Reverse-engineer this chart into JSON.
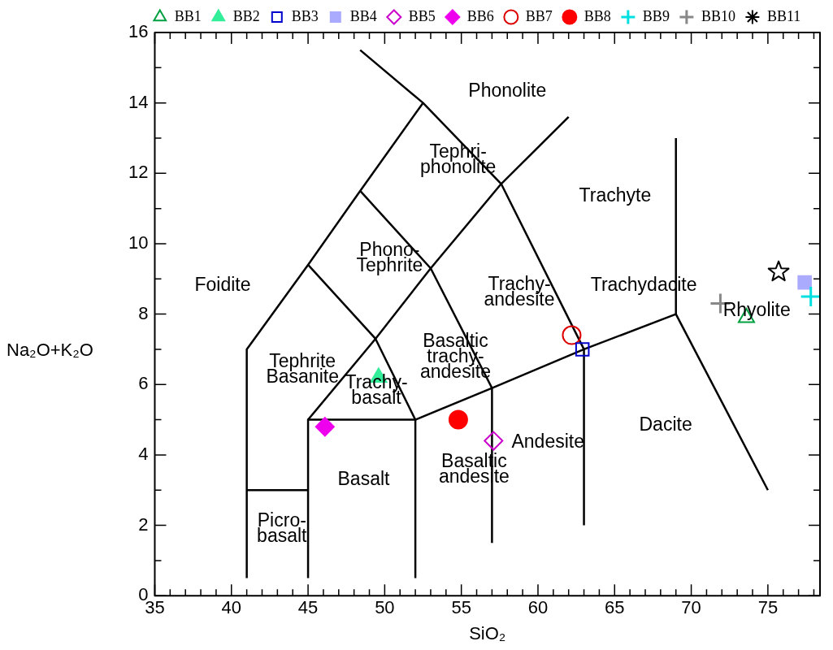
{
  "chart_data": {
    "type": "scatter",
    "xlabel": "SiO₂",
    "ylabel": "Na₂O+K₂O",
    "xlim": [
      35,
      78.4
    ],
    "ylim": [
      0,
      16
    ],
    "xticks": [
      35,
      {
        "value": 36,
        "label": null
      },
      {
        "value": 37,
        "label": null
      },
      {
        "value": 38,
        "label": null
      },
      {
        "value": 39,
        "label": null
      },
      40,
      {
        "value": 41,
        "label": null
      },
      {
        "value": 42,
        "label": null
      },
      {
        "value": 43,
        "label": null
      },
      {
        "value": 44,
        "label": null
      },
      45,
      {
        "value": 46,
        "label": null
      },
      {
        "value": 47,
        "label": null
      },
      {
        "value": 48,
        "label": null
      },
      {
        "value": 49,
        "label": null
      },
      50,
      {
        "value": 51,
        "label": null
      },
      {
        "value": 52,
        "label": null
      },
      {
        "value": 53,
        "label": null
      },
      {
        "value": 54,
        "label": null
      },
      55,
      {
        "value": 56,
        "label": null
      },
      {
        "value": 57,
        "label": null
      },
      {
        "value": 58,
        "label": null
      },
      {
        "value": 59,
        "label": null
      },
      60,
      {
        "value": 61,
        "label": null
      },
      {
        "value": 62,
        "label": null
      },
      {
        "value": 63,
        "label": null
      },
      {
        "value": 64,
        "label": null
      },
      65,
      {
        "value": 66,
        "label": null
      },
      {
        "value": 67,
        "label": null
      },
      {
        "value": 68,
        "label": null
      },
      {
        "value": 69,
        "label": null
      },
      70,
      {
        "value": 71,
        "label": null
      },
      {
        "value": 72,
        "label": null
      },
      {
        "value": 73,
        "label": null
      },
      {
        "value": 74,
        "label": null
      },
      75,
      {
        "value": 76,
        "label": null
      },
      {
        "value": 77,
        "label": null
      },
      {
        "value": 78,
        "label": null
      }
    ],
    "yticks": [
      0,
      {
        "value": 1,
        "label": null
      },
      2,
      {
        "value": 3,
        "label": null
      },
      4,
      {
        "value": 5,
        "label": null
      },
      6,
      {
        "value": 7,
        "label": null
      },
      8,
      {
        "value": 9,
        "label": null
      },
      10,
      {
        "value": 11,
        "label": null
      },
      12,
      {
        "value": 13,
        "label": null
      },
      14,
      {
        "value": 15,
        "label": null
      },
      16
    ],
    "grid": false,
    "legend": "top",
    "series": [
      {
        "name": "BB1",
        "color": "#00a040",
        "marker": "triangle",
        "x": [
          73.6
        ],
        "values": [
          7.9
        ]
      },
      {
        "name": "BB2",
        "color": "#33ee99",
        "marker": "triangle",
        "x": [
          49.6
        ],
        "values": [
          6.2
        ]
      },
      {
        "name": "BB3",
        "color": "#0000cc",
        "marker": "square",
        "x": [
          62.9
        ],
        "values": [
          7.0
        ]
      },
      {
        "name": "BB4",
        "color": "#aaaaff",
        "marker": "square",
        "x": [
          77.4
        ],
        "values": [
          8.9
        ]
      },
      {
        "name": "BB5",
        "color": "#cc00cc",
        "marker": "diamond",
        "x": [
          57.1
        ],
        "values": [
          4.4
        ]
      },
      {
        "name": "BB6",
        "color": "#ee00ee",
        "marker": "diamond",
        "x": [
          46.1
        ],
        "values": [
          4.8
        ]
      },
      {
        "name": "BB7",
        "color": "#dd0000",
        "marker": "circle",
        "x": [
          62.2
        ],
        "values": [
          7.4
        ]
      },
      {
        "name": "BB8",
        "color": "#ff0000",
        "marker": "circle",
        "x": [
          54.8
        ],
        "values": [
          5.0
        ]
      },
      {
        "name": "BB9",
        "color": "#00e0e0",
        "marker": "cross",
        "x": [
          77.8
        ],
        "values": [
          8.5
        ]
      },
      {
        "name": "BB10",
        "color": "#888888",
        "marker": "cross",
        "x": [
          71.9
        ],
        "values": [
          8.3
        ]
      },
      {
        "name": "BB11",
        "color": "#000000",
        "marker": "star",
        "x": [
          75.7
        ],
        "values": [
          9.2
        ]
      },
      {
        "type": "line",
        "color": "#000000",
        "x": [
          41,
          41,
          45,
          48.4,
          52.5,
          48.4
        ],
        "values": [
          0.5,
          7,
          9.4,
          11.5,
          14,
          15.5
        ]
      },
      {
        "type": "line",
        "color": "#000000",
        "x": [
          41,
          45
        ],
        "values": [
          3,
          3
        ]
      },
      {
        "type": "line",
        "color": "#000000",
        "x": [
          45,
          45,
          52,
          57,
          63,
          69,
          75
        ],
        "values": [
          0.5,
          5,
          5,
          5.9,
          7,
          8,
          3
        ]
      },
      {
        "type": "line",
        "color": "#000000",
        "x": [
          52,
          52
        ],
        "values": [
          0.5,
          5
        ]
      },
      {
        "type": "line",
        "color": "#000000",
        "x": [
          57,
          57
        ],
        "values": [
          1.5,
          5.9
        ]
      },
      {
        "type": "line",
        "color": "#000000",
        "x": [
          63,
          63
        ],
        "values": [
          2,
          7
        ]
      },
      {
        "type": "line",
        "color": "#000000",
        "x": [
          69,
          69
        ],
        "values": [
          8,
          13
        ]
      },
      {
        "type": "line",
        "color": "#000000",
        "x": [
          45,
          49.4,
          53,
          57.6,
          62
        ],
        "values": [
          5,
          7.3,
          9.3,
          11.7,
          13.6
        ]
      },
      {
        "type": "line",
        "color": "#000000",
        "x": [
          45,
          49.4,
          52
        ],
        "values": [
          9.4,
          7.3,
          5
        ]
      },
      {
        "type": "line",
        "color": "#000000",
        "x": [
          48.4,
          53,
          57
        ],
        "values": [
          11.5,
          9.3,
          5.9
        ]
      },
      {
        "type": "line",
        "color": "#000000",
        "x": [
          52.5,
          57.6,
          63
        ],
        "values": [
          14,
          11.7,
          7
        ]
      }
    ],
    "annotations": [
      "Foidite",
      "Phonolite",
      "Tephri-\nphonolite",
      "Trachyte",
      "Phono-\nTephrite",
      "Trachy-\nandesite",
      "Trachydacite",
      "Rhyolite",
      "Tephrite\nBasanite",
      "Trachy-\nbasalt",
      "Basaltic\ntrachy-\nandesite",
      "Andesite",
      "Dacite",
      "Basalt",
      "Basaltic\nandesite",
      "Picro-\nbasalt"
    ]
  }
}
